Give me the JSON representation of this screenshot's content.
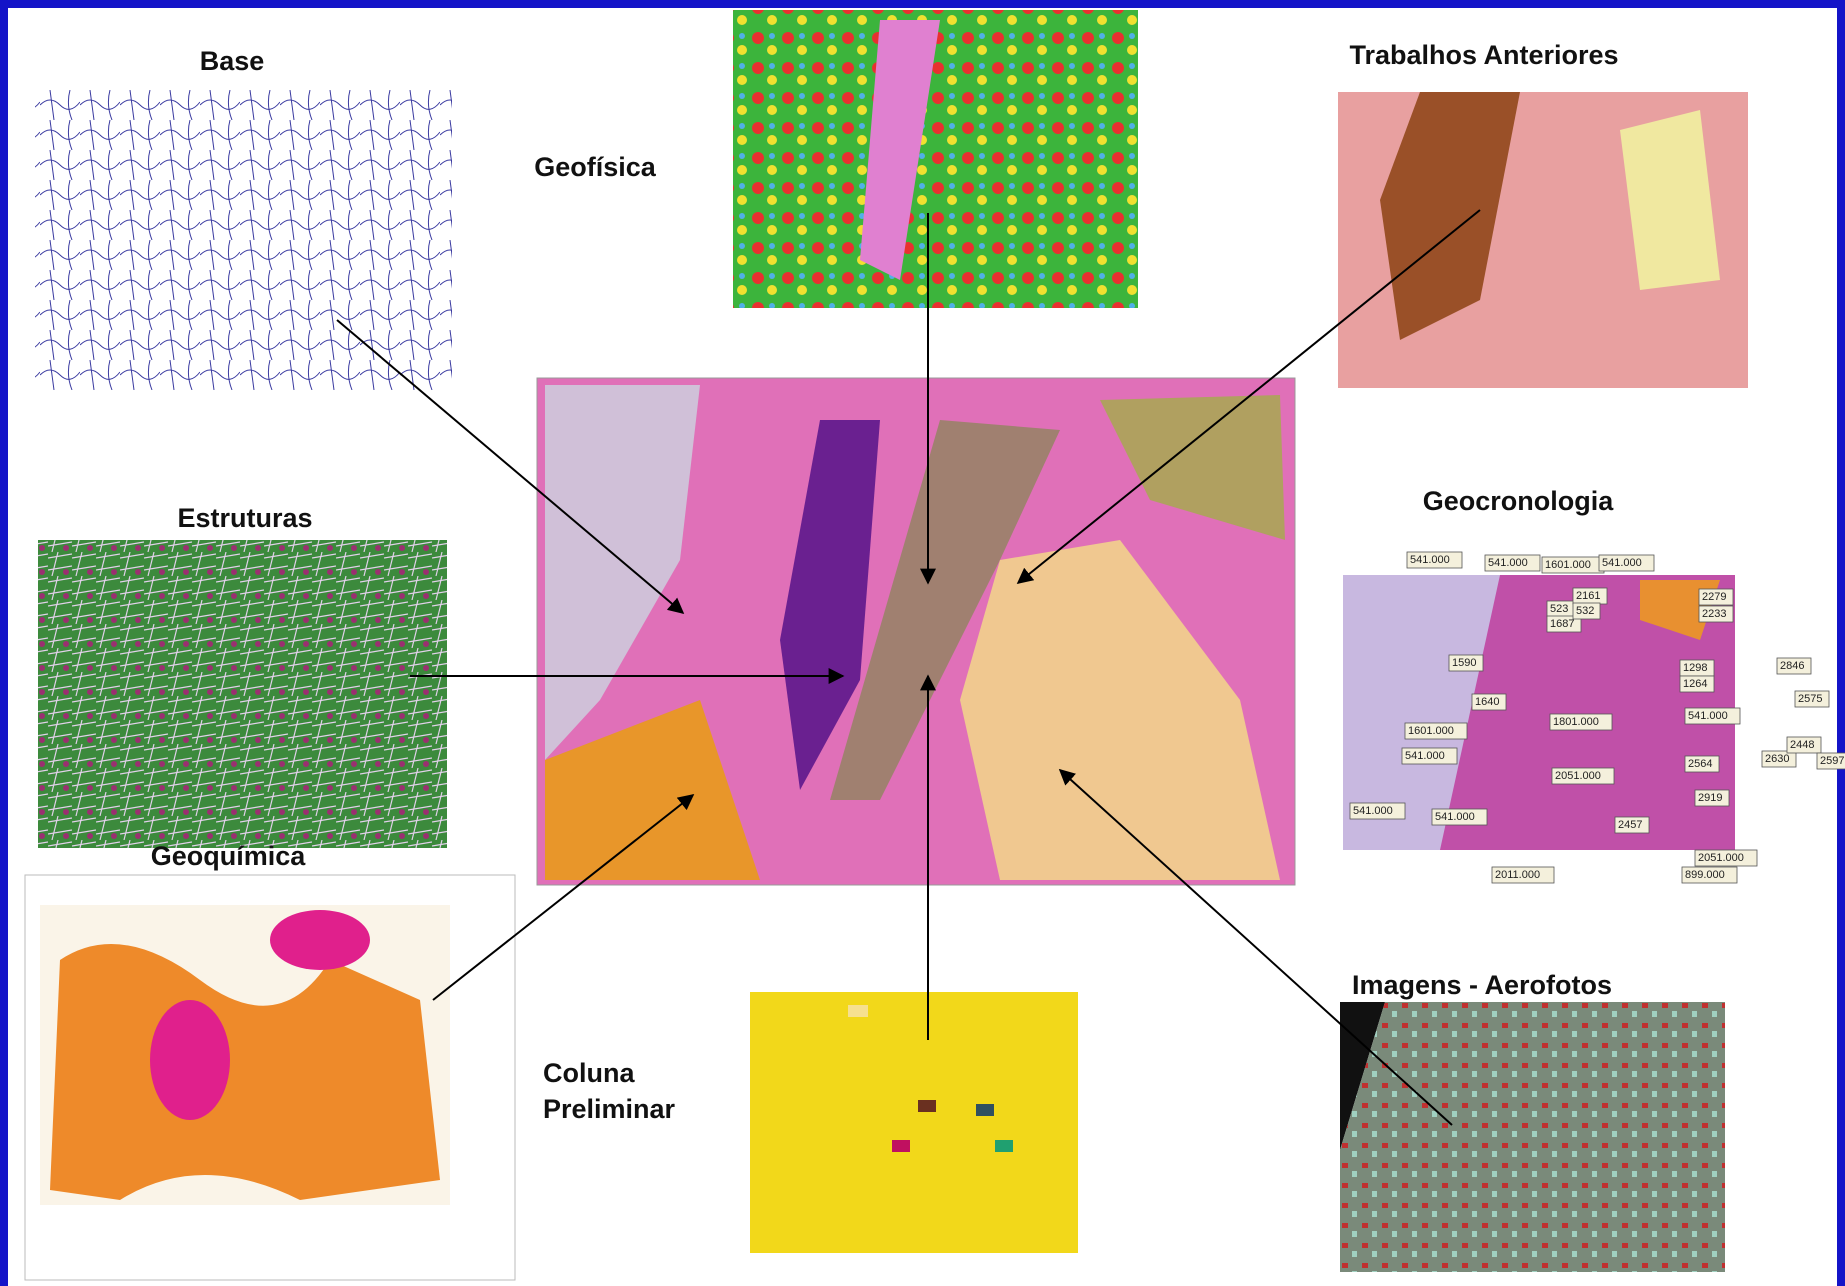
{
  "labels": {
    "base": "Base",
    "geofisica": "Geofísica",
    "trabalhos": "Trabalhos Anteriores",
    "estruturas": "Estruturas",
    "geocronologia": "Geocronologia",
    "geoquimica": "Geoquímica",
    "imagens": "Imagens - Aerofotos",
    "coluna": [
      "Coluna",
      "Preliminar"
    ]
  },
  "geocronologia_labels": [
    "541.000",
    "541.000",
    "1601.000",
    "541.000",
    "2279",
    "2233",
    "523",
    "1687",
    "2161",
    "532",
    "1590",
    "1640",
    "1601.000",
    "541.000",
    "1801.000",
    "1298",
    "1264",
    "2846",
    "2575",
    "541.000",
    "2630",
    "2448",
    "2597",
    "2564",
    "2051.000",
    "2919",
    "541.000",
    "541.000",
    "2457",
    "2051.000",
    "899.000",
    "2011.000"
  ]
}
